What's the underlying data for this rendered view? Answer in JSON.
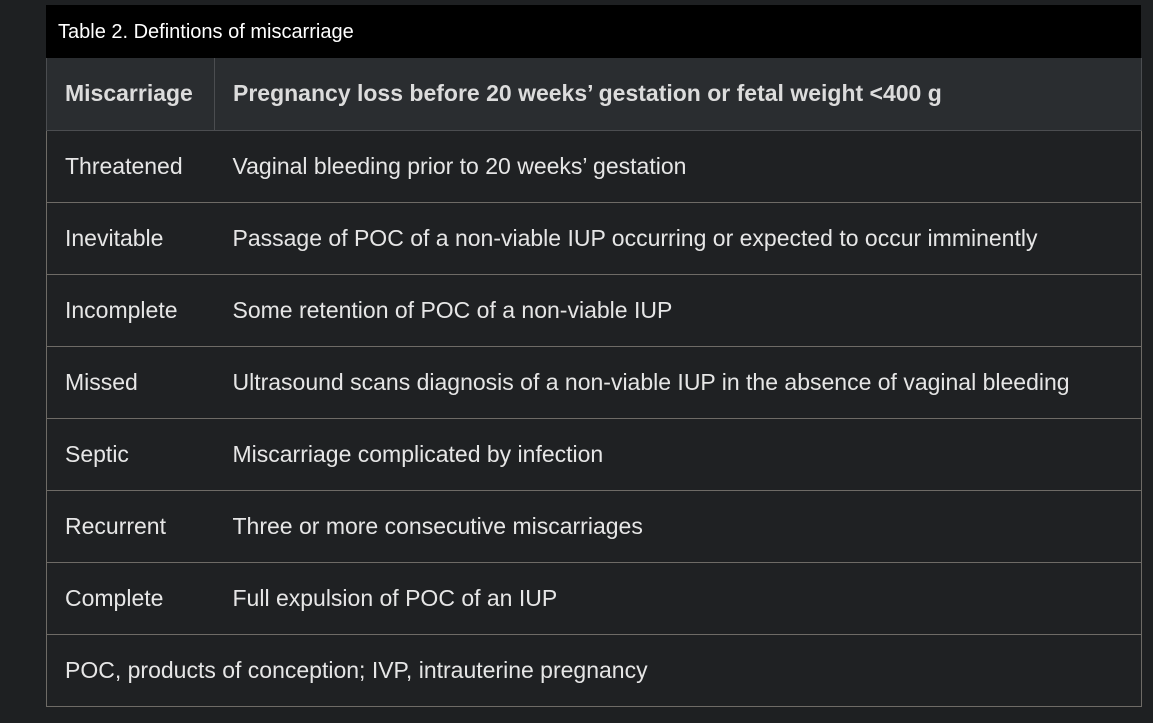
{
  "caption": "Table 2. Defintions of miscarriage",
  "header": {
    "col1": "Miscarriage",
    "col2": "Pregnancy loss before 20 weeks’ gestation or fetal weight <400 g"
  },
  "rows": [
    {
      "term": "Threatened",
      "definition": "Vaginal bleeding prior to 20 weeks’ gestation"
    },
    {
      "term": "Inevitable",
      "definition": "Passage of POC of a non-viable IUP occurring or expected to occur imminently"
    },
    {
      "term": "Incomplete",
      "definition": "Some retention of POC of a non-viable IUP"
    },
    {
      "term": "Missed",
      "definition": "Ultrasound scans diagnosis of a non-viable IUP in the absence of vaginal bleeding"
    },
    {
      "term": "Septic",
      "definition": "Miscarriage complicated by infection"
    },
    {
      "term": "Recurrent",
      "definition": "Three or more consecutive miscarriages"
    },
    {
      "term": "Complete",
      "definition": "Full expulsion of POC of an IUP"
    }
  ],
  "footnote": "POC, products of conception; IVP, intrauterine pregnancy",
  "colors": {
    "page_background": "#1e2022",
    "caption_background": "#000000",
    "header_background": "#2a2d30",
    "cell_background": "#1f2123",
    "border": "#6e6b66",
    "text": "#e6e6e6"
  }
}
